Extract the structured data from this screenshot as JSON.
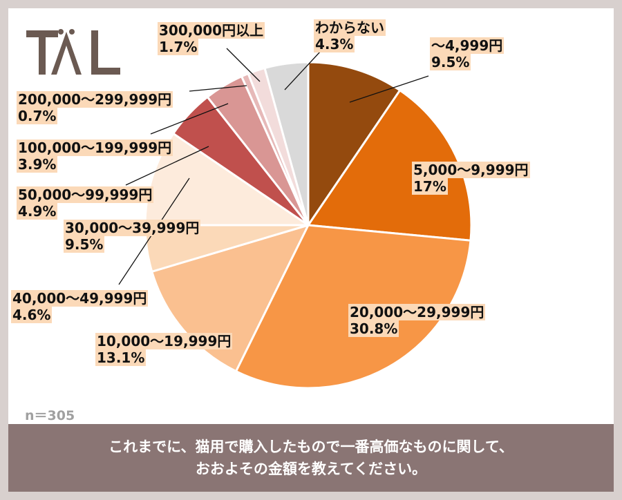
{
  "logo": {
    "text": "TAL"
  },
  "sample_size": "n＝305",
  "question": {
    "line1": "これまでに、猫用で購入したもので一番高価なものに関して、",
    "line2": "おおよその金額を教えてください。"
  },
  "chart_data": {
    "type": "pie",
    "start_angle_deg": 0,
    "direction": "clockwise",
    "slices": [
      {
        "label": "～4,999円",
        "value": 9.5,
        "value_label": "9.5%",
        "color": "#944a0e"
      },
      {
        "label": "5,000～9,999円",
        "value": 17,
        "value_label": "17%",
        "color": "#e36c0a"
      },
      {
        "label": "20,000～29,999円",
        "value": 30.8,
        "value_label": "30.8%",
        "color": "#f79646"
      },
      {
        "label": "10,000～19,999円",
        "value": 13.1,
        "value_label": "13.1%",
        "color": "#fac090"
      },
      {
        "label": "40,000～49,999円",
        "value": 4.6,
        "value_label": "4.6%",
        "color": "#fbd9b8"
      },
      {
        "label": "30,000～39,999円",
        "value": 9.5,
        "value_label": "9.5%",
        "color": "#fdebdc"
      },
      {
        "label": "50,000～99,999円",
        "value": 4.9,
        "value_label": "4.9%",
        "color": "#c0504d"
      },
      {
        "label": "100,000～199,999円",
        "value": 3.9,
        "value_label": "3.9%",
        "color": "#d99694"
      },
      {
        "label": "200,000～299,999円",
        "value": 0.7,
        "value_label": "0.7%",
        "color": "#e6b9b8"
      },
      {
        "label": "300,000円以上",
        "value": 1.7,
        "value_label": "1.7%",
        "color": "#f2dcdb"
      },
      {
        "label": "わからない",
        "value": 4.3,
        "value_label": "4.3%",
        "color": "#d9d9d9"
      }
    ]
  }
}
